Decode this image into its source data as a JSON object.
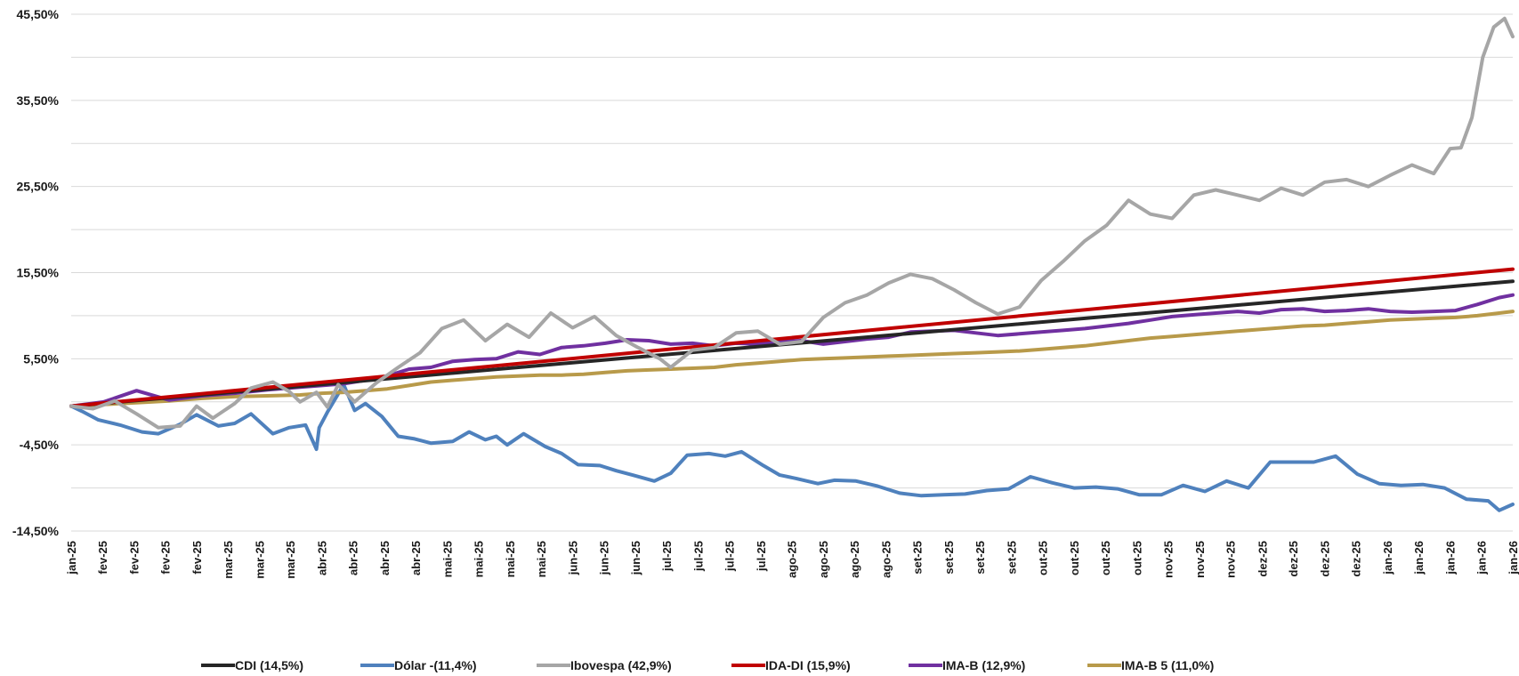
{
  "chart_data": {
    "type": "line",
    "title": "",
    "xlabel": "",
    "ylabel": "",
    "y_ticks": [
      "45,50%",
      "35,50%",
      "25,50%",
      "15,50%",
      "5,50%",
      "-4,50%",
      "-14,50%"
    ],
    "y_tick_values": [
      45.5,
      35.5,
      25.5,
      15.5,
      5.5,
      -4.5,
      -14.5
    ],
    "ylim": [
      -14.5,
      45.5
    ],
    "grid": true,
    "legend_position": "bottom",
    "x_labels": [
      "jan-25",
      "fev-25",
      "fev-25",
      "fev-25",
      "fev-25",
      "mar-25",
      "mar-25",
      "mar-25",
      "abr-25",
      "abr-25",
      "abr-25",
      "abr-25",
      "mai-25",
      "mai-25",
      "mai-25",
      "mai-25",
      "jun-25",
      "jun-25",
      "jun-25",
      "jul-25",
      "jul-25",
      "jul-25",
      "jul-25",
      "ago-25",
      "ago-25",
      "ago-25",
      "ago-25",
      "set-25",
      "set-25",
      "set-25",
      "set-25",
      "out-25",
      "out-25",
      "out-25",
      "out-25",
      "nov-25",
      "nov-25",
      "nov-25",
      "dez-25",
      "dez-25",
      "dez-25",
      "dez-25",
      "jan-26",
      "jan-26",
      "jan-26",
      "jan-26",
      "jan-26"
    ],
    "x_label_positions": [
      0.0,
      0.57,
      1.15,
      1.72,
      2.3,
      2.87,
      3.45,
      4.02,
      4.6,
      5.17,
      5.75,
      6.32,
      6.9,
      7.47,
      8.05,
      8.62,
      9.2,
      9.77,
      10.35,
      10.92,
      11.5,
      12.07,
      12.65,
      13.22,
      13.8,
      14.37,
      14.95,
      15.52,
      16.1,
      16.67,
      17.25,
      17.82,
      18.4,
      18.97,
      19.55,
      20.12,
      20.7,
      21.27,
      21.85,
      22.42,
      23.0,
      23.57,
      24.15,
      24.72,
      25.3,
      25.87,
      26.45
    ],
    "x_range": [
      0,
      26.45
    ],
    "series": [
      {
        "name": "CDI  (14,5%)",
        "color": "#262626",
        "x": [
          0,
          26.45
        ],
        "values": [
          0,
          14.5
        ]
      },
      {
        "name": "Dólar  -(11,4%)",
        "color": "#4f81bd",
        "x": [
          0,
          0.2,
          0.5,
          0.9,
          1.3,
          1.6,
          2.0,
          2.3,
          2.7,
          3.0,
          3.3,
          3.7,
          4.0,
          4.3,
          4.5,
          4.55,
          4.7,
          5.0,
          5.2,
          5.4,
          5.7,
          6.0,
          6.3,
          6.6,
          7.0,
          7.3,
          7.6,
          7.8,
          8.0,
          8.3,
          8.7,
          9.0,
          9.3,
          9.7,
          10.0,
          10.3,
          10.7,
          11.0,
          11.3,
          11.7,
          12.0,
          12.3,
          12.7,
          13.0,
          13.3,
          13.7,
          14.0,
          14.4,
          14.8,
          15.2,
          15.6,
          16.0,
          16.4,
          16.8,
          17.2,
          17.6,
          18.0,
          18.4,
          18.8,
          19.2,
          19.6,
          20.0,
          20.4,
          20.8,
          21.2,
          21.6,
          22.0,
          22.4,
          22.8,
          23.2,
          23.6,
          24.0,
          24.4,
          24.8,
          25.2,
          25.6,
          26.0,
          26.2,
          26.45
        ],
        "values": [
          0,
          -0.6,
          -1.6,
          -2.2,
          -3.0,
          -3.2,
          -2.1,
          -1.0,
          -2.3,
          -2.0,
          -0.9,
          -3.2,
          -2.5,
          -2.2,
          -5.0,
          -2.5,
          -0.7,
          2.5,
          -0.5,
          0.3,
          -1.2,
          -3.5,
          -3.8,
          -4.3,
          -4.1,
          -3.0,
          -3.9,
          -3.5,
          -4.5,
          -3.2,
          -4.7,
          -5.5,
          -6.8,
          -6.9,
          -7.5,
          -8.0,
          -8.7,
          -7.8,
          -5.7,
          -5.5,
          -5.8,
          -5.3,
          -6.9,
          -8.0,
          -8.4,
          -9.0,
          -8.6,
          -8.7,
          -9.3,
          -10.1,
          -10.4,
          -10.3,
          -10.2,
          -9.8,
          -9.6,
          -8.2,
          -8.9,
          -9.5,
          -9.4,
          -9.6,
          -10.3,
          -10.3,
          -9.2,
          -9.9,
          -8.7,
          -9.5,
          -6.5,
          -6.5,
          -6.5,
          -5.8,
          -7.9,
          -9.0,
          -9.2,
          -9.1,
          -9.5,
          -10.8,
          -11.0,
          -12.1,
          -11.4
        ]
      },
      {
        "name": "Ibovespa  (42,9%)",
        "color": "#a6a6a6",
        "x": [
          0,
          0.4,
          0.8,
          1.2,
          1.6,
          2.0,
          2.3,
          2.6,
          3.0,
          3.3,
          3.7,
          4.0,
          4.2,
          4.5,
          4.7,
          4.9,
          5.2,
          5.6,
          6.0,
          6.4,
          6.8,
          7.2,
          7.6,
          8.0,
          8.4,
          8.8,
          9.2,
          9.6,
          10.0,
          10.4,
          10.8,
          11.0,
          11.4,
          11.8,
          12.2,
          12.6,
          13.0,
          13.4,
          13.8,
          14.2,
          14.6,
          15.0,
          15.4,
          15.8,
          16.2,
          16.6,
          17.0,
          17.4,
          17.8,
          18.2,
          18.6,
          19.0,
          19.4,
          19.8,
          20.2,
          20.6,
          21.0,
          21.4,
          21.8,
          22.2,
          22.6,
          23.0,
          23.4,
          23.8,
          24.2,
          24.6,
          25.0,
          25.3,
          25.5,
          25.7,
          25.9,
          26.1,
          26.3,
          26.45
        ],
        "values": [
          0,
          -0.3,
          0.6,
          -0.9,
          -2.5,
          -2.3,
          0.0,
          -1.4,
          0.3,
          2.1,
          2.8,
          1.7,
          0.5,
          1.6,
          -0.1,
          2.5,
          0.5,
          2.7,
          4.5,
          6.2,
          9.0,
          10.0,
          7.6,
          9.5,
          8.0,
          10.8,
          9.1,
          10.4,
          8.2,
          6.8,
          5.5,
          4.5,
          6.5,
          6.8,
          8.5,
          8.7,
          7.2,
          7.5,
          10.3,
          12.0,
          12.9,
          14.3,
          15.3,
          14.8,
          13.5,
          12.0,
          10.7,
          11.5,
          14.6,
          16.8,
          19.2,
          21.0,
          23.9,
          22.3,
          21.8,
          24.5,
          25.1,
          24.5,
          23.9,
          25.3,
          24.5,
          26.0,
          26.3,
          25.5,
          26.8,
          28.0,
          27.0,
          29.9,
          30.0,
          33.5,
          40.5,
          44.0,
          45.0,
          42.9
        ]
      },
      {
        "name": "IDA-DI  (15,9%)",
        "color": "#c00000",
        "x": [
          0,
          26.45
        ],
        "values": [
          0,
          15.9
        ]
      },
      {
        "name": "IMA-B  (12,9%)",
        "color": "#7030a0",
        "x": [
          0,
          0.6,
          1.2,
          1.8,
          2.4,
          3.0,
          3.6,
          4.2,
          4.6,
          5.0,
          5.4,
          5.8,
          6.2,
          6.6,
          7.0,
          7.4,
          7.8,
          8.2,
          8.6,
          9.0,
          9.4,
          9.8,
          10.2,
          10.6,
          11.0,
          11.4,
          11.8,
          12.2,
          12.6,
          13.0,
          13.4,
          13.8,
          14.2,
          14.6,
          15.0,
          15.4,
          15.8,
          16.2,
          16.6,
          17.0,
          17.4,
          17.8,
          18.2,
          18.6,
          19.0,
          19.4,
          19.8,
          20.2,
          20.6,
          21.0,
          21.4,
          21.8,
          22.2,
          22.6,
          23.0,
          23.4,
          23.8,
          24.2,
          24.6,
          25.0,
          25.4,
          25.8,
          26.2,
          26.45
        ],
        "values": [
          0,
          0.5,
          1.8,
          0.7,
          1.2,
          1.5,
          1.9,
          2.2,
          2.4,
          2.6,
          3.0,
          3.5,
          4.3,
          4.5,
          5.2,
          5.4,
          5.5,
          6.3,
          6.0,
          6.8,
          7.0,
          7.3,
          7.7,
          7.6,
          7.2,
          7.3,
          7.0,
          7.3,
          7.2,
          7.5,
          7.6,
          7.2,
          7.5,
          7.8,
          8.0,
          8.6,
          8.7,
          8.8,
          8.5,
          8.2,
          8.4,
          8.6,
          8.8,
          9.0,
          9.3,
          9.6,
          10.0,
          10.4,
          10.6,
          10.8,
          11.0,
          10.8,
          11.2,
          11.3,
          11.0,
          11.1,
          11.3,
          11.0,
          10.9,
          11.0,
          11.1,
          11.8,
          12.6,
          12.9
        ]
      },
      {
        "name": "IMA-B 5  (11,0%)",
        "color": "#b89a4a",
        "x": [
          0,
          0.6,
          1.2,
          1.8,
          2.4,
          3.0,
          3.6,
          4.2,
          4.6,
          5.0,
          5.4,
          5.8,
          6.2,
          6.6,
          7.0,
          7.4,
          7.8,
          8.2,
          8.6,
          9.0,
          9.4,
          9.8,
          10.2,
          10.6,
          11.0,
          11.4,
          11.8,
          12.2,
          12.6,
          13.0,
          13.4,
          13.8,
          14.2,
          14.6,
          15.0,
          15.4,
          15.8,
          16.2,
          16.6,
          17.0,
          17.4,
          17.8,
          18.2,
          18.6,
          19.0,
          19.4,
          19.8,
          20.2,
          20.6,
          21.0,
          21.4,
          21.8,
          22.2,
          22.6,
          23.0,
          23.4,
          23.8,
          24.2,
          24.6,
          25.0,
          25.4,
          25.8,
          26.2,
          26.45
        ],
        "values": [
          0,
          0.2,
          0.4,
          0.6,
          0.9,
          1.1,
          1.2,
          1.3,
          1.5,
          1.6,
          1.8,
          2.0,
          2.4,
          2.8,
          3.0,
          3.2,
          3.4,
          3.5,
          3.6,
          3.6,
          3.7,
          3.9,
          4.1,
          4.2,
          4.3,
          4.4,
          4.5,
          4.8,
          5.0,
          5.2,
          5.4,
          5.5,
          5.6,
          5.7,
          5.8,
          5.9,
          6.0,
          6.1,
          6.2,
          6.3,
          6.4,
          6.6,
          6.8,
          7.0,
          7.3,
          7.6,
          7.9,
          8.1,
          8.3,
          8.5,
          8.7,
          8.9,
          9.1,
          9.3,
          9.4,
          9.6,
          9.8,
          10.0,
          10.1,
          10.2,
          10.3,
          10.5,
          10.8,
          11.0
        ]
      }
    ]
  }
}
